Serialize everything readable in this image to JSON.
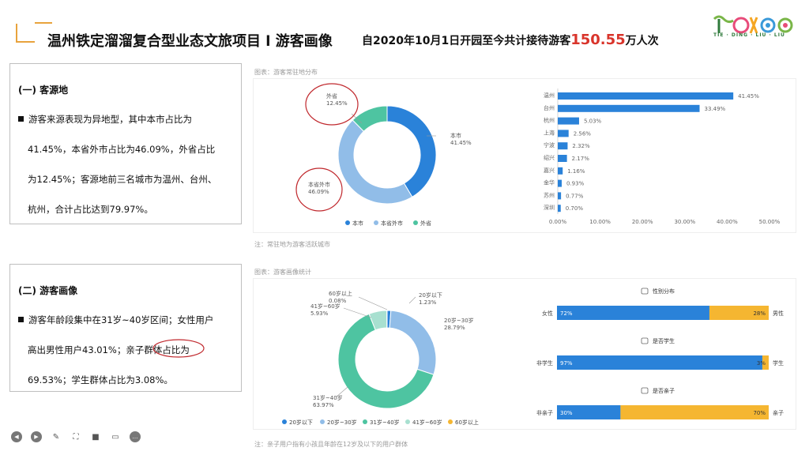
{
  "header": {
    "title": "温州铁定溜溜复合型业态文旅项目 l 游客画像",
    "subtitle_prefix": "自2020年10月1日开园至今共计接待游客",
    "subtitle_highlight": "150.55",
    "subtitle_suffix": "万人次",
    "logo_caption": "TIE · DING · LIU · LIU"
  },
  "box1": {
    "heading": "(一) 客源地",
    "lines": [
      "游客来源表现为异地型，其中本市占比为",
      "41.45%，本省外市占比为46.09%，外省占比",
      "为12.45%；客源地前三名城市为温州、台州、",
      "杭州，合计占比达到79.97%。"
    ]
  },
  "box2": {
    "heading": "(二) 游客画像",
    "lines": [
      "游客年龄段集中在31岁~40岁区间；女性用户",
      "高出男性用户43.01%；亲子群体占比为",
      "69.53%；学生群体占比为3.08%。"
    ]
  },
  "captions": {
    "chart1_title": "图表：游客常驻地分布",
    "chart1_note": "注：常驻地为游客活跃城市",
    "chart2_title": "图表：游客画像统计",
    "chart2_note": "注：亲子用户指有小孩且年龄在12岁及以下的用户群体"
  },
  "colors": {
    "blue_dark": "#2a82d9",
    "blue_light": "#91bde8",
    "green": "#4ec4a1",
    "mint": "#a8e0d0",
    "orange": "#f5b631",
    "gray_axis": "#999999"
  },
  "chart_data": [
    {
      "type": "pie",
      "variant": "donut",
      "labels": [
        "本市",
        "本省外市",
        "外省"
      ],
      "values": [
        41.45,
        46.09,
        12.45
      ],
      "slice_labels": [
        "本市\n41.45%",
        "本省外市\n46.09%",
        "外省\n12.45%"
      ],
      "legend": [
        "本市",
        "本省外市",
        "外省"
      ]
    },
    {
      "type": "bar",
      "orientation": "horizontal",
      "categories": [
        "温州",
        "台州",
        "杭州",
        "上海",
        "宁波",
        "绍兴",
        "嘉兴",
        "金华",
        "苏州",
        "深圳"
      ],
      "values": [
        41.45,
        33.49,
        5.03,
        2.56,
        2.32,
        2.17,
        1.16,
        0.93,
        0.77,
        0.7
      ],
      "value_labels": [
        "41.45%",
        "33.49%",
        "5.03%",
        "2.56%",
        "2.32%",
        "2.17%",
        "1.16%",
        "0.93%",
        "0.77%",
        "0.70%"
      ],
      "xlim": [
        0,
        50
      ],
      "xticks": [
        "0.00%",
        "10.00%",
        "20.00%",
        "30.00%",
        "40.00%",
        "50.00%"
      ]
    },
    {
      "type": "pie",
      "variant": "donut",
      "labels": [
        "20岁以下",
        "20岁~30岁",
        "31岁~40岁",
        "41岁~60岁",
        "60岁以上"
      ],
      "values": [
        1.23,
        28.79,
        63.97,
        5.93,
        0.08
      ],
      "slice_labels": [
        "20岁以下\n1.23%",
        "20岁~30岁\n28.79%",
        "31岁~40岁\n63.97%",
        "41岁~60岁\n5.93%",
        "60岁以上\n0.08%"
      ],
      "legend": [
        "20岁以下",
        "20岁~30岁",
        "31岁~40岁",
        "41岁~60岁",
        "60岁以上"
      ]
    },
    {
      "type": "bar",
      "orientation": "horizontal",
      "stacked": true,
      "groups": [
        {
          "title": "性别分布",
          "left_label": "女性",
          "right_label": "男性",
          "left_value": 72,
          "right_value": 28,
          "left_text": "72%",
          "right_text": "28%"
        },
        {
          "title": "是否学生",
          "left_label": "非学生",
          "right_label": "学生",
          "left_value": 97,
          "right_value": 3,
          "left_text": "97%",
          "right_text": "3%"
        },
        {
          "title": "是否亲子",
          "left_label": "非亲子",
          "right_label": "亲子",
          "left_value": 30,
          "right_value": 70,
          "left_text": "30%",
          "right_text": "70%"
        }
      ]
    }
  ],
  "toolbar": {
    "icons": [
      "prev-icon",
      "next-icon",
      "pen-icon",
      "fullscreen-icon",
      "video-icon",
      "comment-icon",
      "more-icon"
    ]
  }
}
